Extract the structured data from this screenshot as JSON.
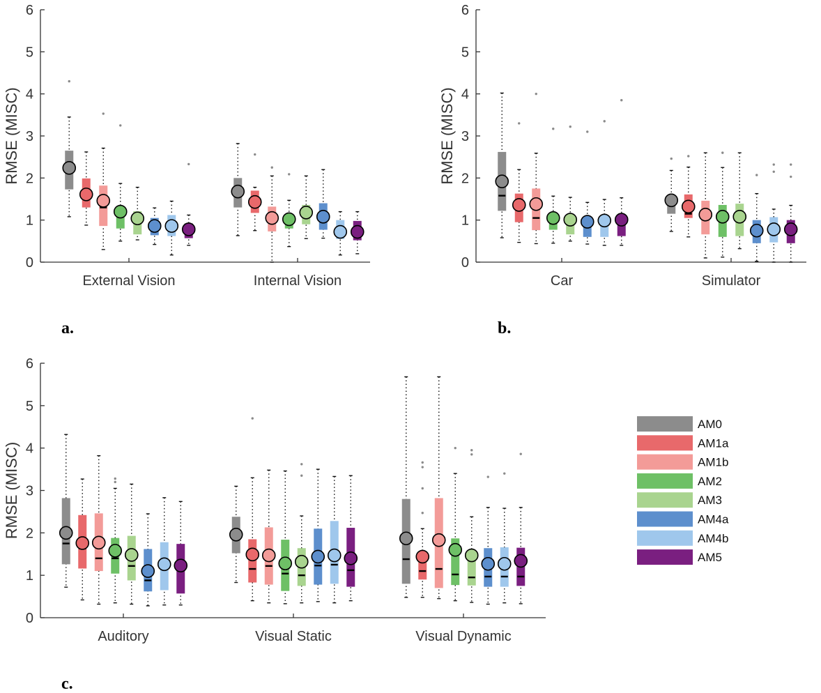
{
  "series_meta": [
    {
      "name": "AM0",
      "color": "#8c8c8c"
    },
    {
      "name": "AM1a",
      "color": "#e8696b"
    },
    {
      "name": "AM1b",
      "color": "#f39b98"
    },
    {
      "name": "AM2",
      "color": "#6ec066"
    },
    {
      "name": "AM3",
      "color": "#a9d48f"
    },
    {
      "name": "AM4a",
      "color": "#5d8fcd"
    },
    {
      "name": "AM4b",
      "color": "#9fc7ec"
    },
    {
      "name": "AM5",
      "color": "#7a1f80"
    }
  ],
  "chart_data": [
    {
      "type": "box",
      "panel_label": "a.",
      "ylabel": "RMSE (MISC)",
      "ylim": [
        0,
        6
      ],
      "yticks": [
        0,
        1,
        2,
        3,
        4,
        5,
        6
      ],
      "categories": [
        "External Vision",
        "Internal Vision"
      ],
      "groups": [
        {
          "category": "External Vision",
          "boxes": [
            {
              "series": "AM0",
              "q1": 1.73,
              "median": 2.24,
              "q3": 2.65,
              "wlo": 1.08,
              "whi": 3.45,
              "mean": 2.24,
              "outliers": [
                4.3
              ]
            },
            {
              "series": "AM1a",
              "q1": 1.3,
              "median": 1.55,
              "q3": 1.99,
              "wlo": 0.88,
              "whi": 2.62,
              "mean": 1.61,
              "outliers": []
            },
            {
              "series": "AM1b",
              "q1": 0.86,
              "median": 1.3,
              "q3": 1.82,
              "wlo": 0.3,
              "whi": 2.71,
              "mean": 1.46,
              "outliers": [
                3.53
              ]
            },
            {
              "series": "AM2",
              "q1": 0.8,
              "median": 1.12,
              "q3": 1.31,
              "wlo": 0.5,
              "whi": 1.87,
              "mean": 1.2,
              "outliers": [
                3.25
              ]
            },
            {
              "series": "AM3",
              "q1": 0.66,
              "median": 1.0,
              "q3": 1.21,
              "wlo": 0.53,
              "whi": 1.78,
              "mean": 1.04,
              "outliers": []
            },
            {
              "series": "AM4a",
              "q1": 0.64,
              "median": 0.82,
              "q3": 1.05,
              "wlo": 0.42,
              "whi": 1.29,
              "mean": 0.86,
              "outliers": []
            },
            {
              "series": "AM4b",
              "q1": 0.62,
              "median": 0.82,
              "q3": 1.12,
              "wlo": 0.17,
              "whi": 1.45,
              "mean": 0.86,
              "outliers": []
            },
            {
              "series": "AM5",
              "q1": 0.57,
              "median": 0.7,
              "q3": 0.92,
              "wlo": 0.4,
              "whi": 1.12,
              "mean": 0.78,
              "outliers": [
                2.33
              ]
            }
          ]
        },
        {
          "category": "Internal Vision",
          "boxes": [
            {
              "series": "AM0",
              "q1": 1.3,
              "median": 1.68,
              "q3": 2.0,
              "wlo": 0.63,
              "whi": 2.82,
              "mean": 1.68,
              "outliers": []
            },
            {
              "series": "AM1a",
              "q1": 1.17,
              "median": 1.4,
              "q3": 1.7,
              "wlo": 0.75,
              "whi": 1.78,
              "mean": 1.43,
              "outliers": [
                2.56
              ]
            },
            {
              "series": "AM1b",
              "q1": 0.73,
              "median": 1.02,
              "q3": 1.32,
              "wlo": 0.0,
              "whi": 2.05,
              "mean": 1.05,
              "outliers": [
                2.25
              ]
            },
            {
              "series": "AM2",
              "q1": 0.8,
              "median": 0.92,
              "q3": 1.13,
              "wlo": 0.37,
              "whi": 1.47,
              "mean": 1.02,
              "outliers": [
                2.09
              ]
            },
            {
              "series": "AM3",
              "q1": 0.9,
              "median": 1.2,
              "q3": 1.36,
              "wlo": 0.56,
              "whi": 2.05,
              "mean": 1.18,
              "outliers": []
            },
            {
              "series": "AM4a",
              "q1": 0.77,
              "median": 1.0,
              "q3": 1.4,
              "wlo": 0.57,
              "whi": 2.2,
              "mean": 1.08,
              "outliers": []
            },
            {
              "series": "AM4b",
              "q1": 0.55,
              "median": 0.7,
              "q3": 1.0,
              "wlo": 0.17,
              "whi": 1.2,
              "mean": 0.72,
              "outliers": []
            },
            {
              "series": "AM5",
              "q1": 0.52,
              "median": 0.66,
              "q3": 0.98,
              "wlo": 0.2,
              "whi": 1.2,
              "mean": 0.72,
              "outliers": []
            }
          ]
        }
      ]
    },
    {
      "type": "box",
      "panel_label": "b.",
      "ylabel": "RMSE (MISC)",
      "ylim": [
        0,
        6
      ],
      "yticks": [
        0,
        1,
        2,
        3,
        4,
        5,
        6
      ],
      "categories": [
        "Car",
        "Simulator"
      ],
      "groups": [
        {
          "category": "Car",
          "boxes": [
            {
              "series": "AM0",
              "q1": 1.22,
              "median": 1.58,
              "q3": 2.62,
              "wlo": 0.58,
              "whi": 4.02,
              "mean": 1.92,
              "outliers": []
            },
            {
              "series": "AM1a",
              "q1": 0.95,
              "median": 1.35,
              "q3": 1.63,
              "wlo": 0.47,
              "whi": 2.2,
              "mean": 1.36,
              "outliers": [
                3.3
              ]
            },
            {
              "series": "AM1b",
              "q1": 0.76,
              "median": 1.05,
              "q3": 1.75,
              "wlo": 0.44,
              "whi": 2.59,
              "mean": 1.38,
              "outliers": [
                4.0
              ]
            },
            {
              "series": "AM2",
              "q1": 0.77,
              "median": 0.92,
              "q3": 1.1,
              "wlo": 0.45,
              "whi": 1.57,
              "mean": 1.05,
              "outliers": [
                3.17
              ]
            },
            {
              "series": "AM3",
              "q1": 0.66,
              "median": 1.0,
              "q3": 1.05,
              "wlo": 0.5,
              "whi": 1.54,
              "mean": 1.01,
              "outliers": [
                3.22
              ]
            },
            {
              "series": "AM4a",
              "q1": 0.6,
              "median": 0.9,
              "q3": 1.01,
              "wlo": 0.43,
              "whi": 1.42,
              "mean": 0.96,
              "outliers": [
                3.1
              ]
            },
            {
              "series": "AM4b",
              "q1": 0.6,
              "median": 0.88,
              "q3": 1.04,
              "wlo": 0.4,
              "whi": 1.49,
              "mean": 0.99,
              "outliers": [
                3.35
              ]
            },
            {
              "series": "AM5",
              "q1": 0.62,
              "median": 0.9,
              "q3": 1.08,
              "wlo": 0.4,
              "whi": 1.53,
              "mean": 1.01,
              "outliers": [
                3.85
              ]
            }
          ]
        },
        {
          "category": "Simulator",
          "boxes": [
            {
              "series": "AM0",
              "q1": 1.15,
              "median": 1.4,
              "q3": 1.5,
              "wlo": 0.73,
              "whi": 2.18,
              "mean": 1.47,
              "outliers": [
                2.46
              ]
            },
            {
              "series": "AM1a",
              "q1": 1.05,
              "median": 1.15,
              "q3": 1.61,
              "wlo": 0.6,
              "whi": 2.26,
              "mean": 1.32,
              "outliers": [
                2.52
              ]
            },
            {
              "series": "AM1b",
              "q1": 0.66,
              "median": 1.1,
              "q3": 1.46,
              "wlo": 0.1,
              "whi": 2.6,
              "mean": 1.13,
              "outliers": []
            },
            {
              "series": "AM2",
              "q1": 0.6,
              "median": 1.0,
              "q3": 1.36,
              "wlo": 0.12,
              "whi": 2.25,
              "mean": 1.08,
              "outliers": [
                2.6
              ]
            },
            {
              "series": "AM3",
              "q1": 0.62,
              "median": 1.0,
              "q3": 1.39,
              "wlo": 0.32,
              "whi": 2.6,
              "mean": 1.08,
              "outliers": []
            },
            {
              "series": "AM4a",
              "q1": 0.45,
              "median": 0.65,
              "q3": 1.0,
              "wlo": 0.02,
              "whi": 1.63,
              "mean": 0.75,
              "outliers": [
                2.07
              ]
            },
            {
              "series": "AM4b",
              "q1": 0.47,
              "median": 0.7,
              "q3": 1.07,
              "wlo": 0.0,
              "whi": 1.26,
              "mean": 0.78,
              "outliers": [
                2.15,
                2.32
              ]
            },
            {
              "series": "AM5",
              "q1": 0.45,
              "median": 0.7,
              "q3": 1.0,
              "wlo": 0.0,
              "whi": 1.35,
              "mean": 0.78,
              "outliers": [
                2.03,
                2.32
              ]
            }
          ]
        }
      ]
    },
    {
      "type": "box",
      "panel_label": "c.",
      "ylabel": "RMSE (MISC)",
      "ylim": [
        0,
        6
      ],
      "yticks": [
        0,
        1,
        2,
        3,
        4,
        5,
        6
      ],
      "categories": [
        "Auditory",
        "Visual Static",
        "Visual Dynamic"
      ],
      "groups": [
        {
          "category": "Auditory",
          "boxes": [
            {
              "series": "AM0",
              "q1": 1.26,
              "median": 1.75,
              "q3": 2.82,
              "wlo": 0.72,
              "whi": 4.32,
              "mean": 2.0,
              "outliers": []
            },
            {
              "series": "AM1a",
              "q1": 1.16,
              "median": 1.63,
              "q3": 2.42,
              "wlo": 0.42,
              "whi": 3.27,
              "mean": 1.76,
              "outliers": []
            },
            {
              "series": "AM1b",
              "q1": 1.1,
              "median": 1.4,
              "q3": 2.46,
              "wlo": 0.32,
              "whi": 3.82,
              "mean": 1.77,
              "outliers": []
            },
            {
              "series": "AM2",
              "q1": 1.04,
              "median": 1.4,
              "q3": 1.88,
              "wlo": 0.35,
              "whi": 3.05,
              "mean": 1.58,
              "outliers": [
                3.2,
                3.28
              ]
            },
            {
              "series": "AM3",
              "q1": 0.88,
              "median": 1.22,
              "q3": 1.93,
              "wlo": 0.32,
              "whi": 3.15,
              "mean": 1.48,
              "outliers": []
            },
            {
              "series": "AM4a",
              "q1": 0.62,
              "median": 0.88,
              "q3": 1.62,
              "wlo": 0.28,
              "whi": 2.45,
              "mean": 1.1,
              "outliers": []
            },
            {
              "series": "AM4b",
              "q1": 0.65,
              "median": 1.25,
              "q3": 1.78,
              "wlo": 0.3,
              "whi": 2.83,
              "mean": 1.26,
              "outliers": []
            },
            {
              "series": "AM5",
              "q1": 0.57,
              "median": 1.18,
              "q3": 1.74,
              "wlo": 0.3,
              "whi": 2.74,
              "mean": 1.23,
              "outliers": []
            }
          ]
        },
        {
          "category": "Visual Static",
          "boxes": [
            {
              "series": "AM0",
              "q1": 1.52,
              "median": 1.96,
              "q3": 2.38,
              "wlo": 0.83,
              "whi": 3.1,
              "mean": 1.96,
              "outliers": []
            },
            {
              "series": "AM1a",
              "q1": 0.83,
              "median": 1.15,
              "q3": 1.85,
              "wlo": 0.4,
              "whi": 3.3,
              "mean": 1.49,
              "outliers": [
                4.7
              ]
            },
            {
              "series": "AM1b",
              "q1": 0.78,
              "median": 1.22,
              "q3": 2.13,
              "wlo": 0.35,
              "whi": 3.48,
              "mean": 1.47,
              "outliers": []
            },
            {
              "series": "AM2",
              "q1": 0.63,
              "median": 1.04,
              "q3": 1.84,
              "wlo": 0.33,
              "whi": 3.46,
              "mean": 1.28,
              "outliers": []
            },
            {
              "series": "AM3",
              "q1": 0.75,
              "median": 1.0,
              "q3": 1.64,
              "wlo": 0.35,
              "whi": 2.4,
              "mean": 1.32,
              "outliers": [
                3.35,
                3.62
              ]
            },
            {
              "series": "AM4a",
              "q1": 0.78,
              "median": 1.23,
              "q3": 2.1,
              "wlo": 0.38,
              "whi": 3.5,
              "mean": 1.44,
              "outliers": []
            },
            {
              "series": "AM4b",
              "q1": 0.8,
              "median": 1.25,
              "q3": 2.28,
              "wlo": 0.35,
              "whi": 3.33,
              "mean": 1.47,
              "outliers": []
            },
            {
              "series": "AM5",
              "q1": 0.73,
              "median": 1.12,
              "q3": 2.12,
              "wlo": 0.4,
              "whi": 3.35,
              "mean": 1.4,
              "outliers": []
            }
          ]
        },
        {
          "category": "Visual Dynamic",
          "boxes": [
            {
              "series": "AM0",
              "q1": 0.8,
              "median": 1.38,
              "q3": 2.8,
              "wlo": 0.48,
              "whi": 5.68,
              "mean": 1.87,
              "outliers": []
            },
            {
              "series": "AM1a",
              "q1": 0.9,
              "median": 1.1,
              "q3": 1.47,
              "wlo": 0.48,
              "whi": 2.1,
              "mean": 1.44,
              "outliers": [
                2.47,
                3.05,
                3.55,
                3.66
              ]
            },
            {
              "series": "AM1b",
              "q1": 0.7,
              "median": 1.15,
              "q3": 2.82,
              "wlo": 0.45,
              "whi": 5.68,
              "mean": 1.83,
              "outliers": []
            },
            {
              "series": "AM2",
              "q1": 0.77,
              "median": 1.02,
              "q3": 1.87,
              "wlo": 0.4,
              "whi": 3.4,
              "mean": 1.6,
              "outliers": [
                4.0
              ]
            },
            {
              "series": "AM3",
              "q1": 0.76,
              "median": 0.95,
              "q3": 1.4,
              "wlo": 0.36,
              "whi": 2.38,
              "mean": 1.47,
              "outliers": [
                3.85,
                3.95
              ]
            },
            {
              "series": "AM4a",
              "q1": 0.73,
              "median": 0.97,
              "q3": 1.64,
              "wlo": 0.32,
              "whi": 2.6,
              "mean": 1.27,
              "outliers": [
                3.32
              ]
            },
            {
              "series": "AM4b",
              "q1": 0.73,
              "median": 0.97,
              "q3": 1.66,
              "wlo": 0.35,
              "whi": 2.58,
              "mean": 1.27,
              "outliers": [
                3.4
              ]
            },
            {
              "series": "AM5",
              "q1": 0.75,
              "median": 0.97,
              "q3": 1.65,
              "wlo": 0.33,
              "whi": 2.6,
              "mean": 1.34,
              "outliers": [
                3.86
              ]
            }
          ]
        }
      ]
    }
  ]
}
